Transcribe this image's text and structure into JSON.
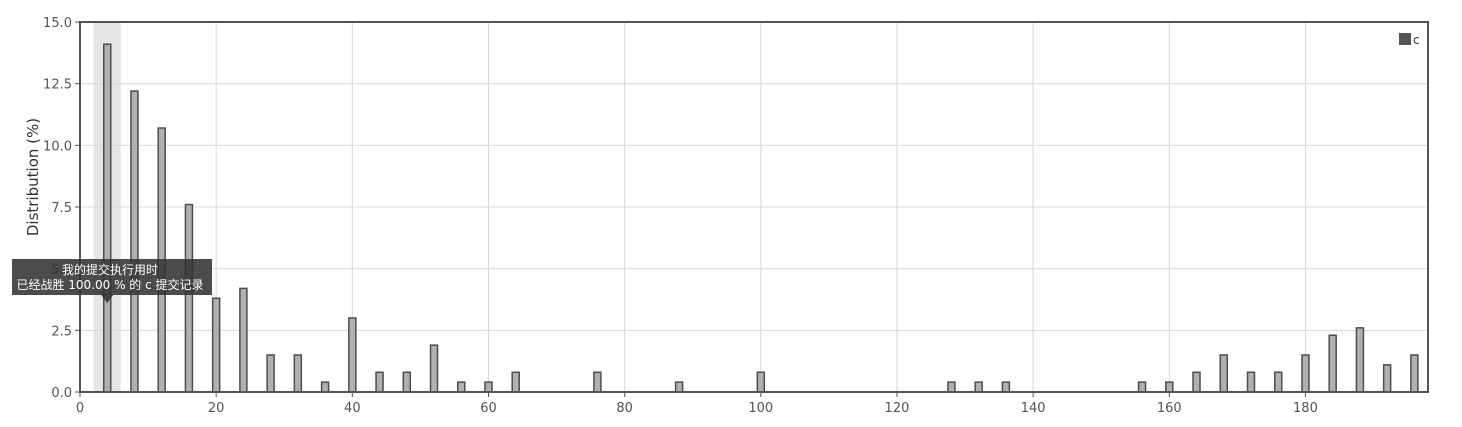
{
  "chart_data": {
    "type": "bar",
    "ylabel": "Distribution (%)",
    "xlim": [
      0,
      198
    ],
    "ylim": [
      0,
      15
    ],
    "xticks": [
      0,
      20,
      40,
      60,
      80,
      100,
      120,
      140,
      160,
      180
    ],
    "yticks": [
      "0.0",
      "2.5",
      "5.0",
      "7.5",
      "10.0",
      "12.5",
      "15.0"
    ],
    "grid": true,
    "legend": {
      "position": "top-right",
      "entries": [
        "c"
      ]
    },
    "series": [
      {
        "name": "c",
        "color": "#b0b0b0",
        "x": [
          4,
          8,
          12,
          16,
          20,
          24,
          28,
          32,
          36,
          40,
          44,
          48,
          52,
          56,
          60,
          64,
          76,
          88,
          100,
          128,
          132,
          136,
          156,
          160,
          164,
          168,
          172,
          176,
          180,
          184,
          188,
          192,
          196
        ],
        "values": [
          14.1,
          12.2,
          10.7,
          7.6,
          3.8,
          4.2,
          1.5,
          1.5,
          0.4,
          3.0,
          0.8,
          0.8,
          1.9,
          0.4,
          0.4,
          0.8,
          0.8,
          0.4,
          0.8,
          0.4,
          0.4,
          0.4,
          0.4,
          0.4,
          0.8,
          1.5,
          0.8,
          0.8,
          1.5,
          2.3,
          2.6,
          1.1,
          1.5
        ]
      }
    ],
    "highlight": {
      "x": 4,
      "range": [
        2,
        6
      ]
    },
    "tooltip": {
      "x": 4,
      "line1": "我的提交执行用时",
      "line2": "已经战胜 100.00 % 的 c 提交记录"
    }
  }
}
